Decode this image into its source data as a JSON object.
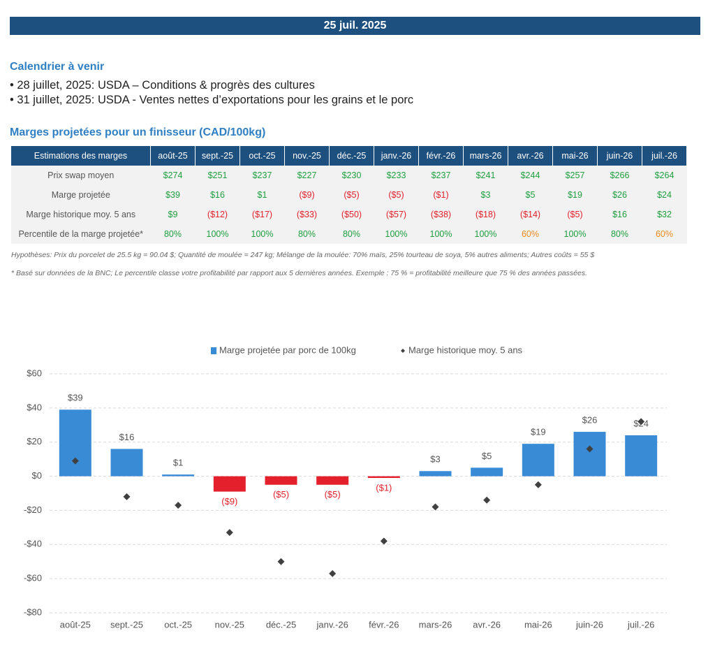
{
  "header": {
    "date": "25 juil. 2025"
  },
  "calendar": {
    "title": "Calendrier à venir",
    "items": [
      "28 juillet, 2025: USDA – Conditions & progrès des cultures",
      "31 juillet, 2025: USDA - Ventes nettes d’exportations pour les grains et le porc"
    ]
  },
  "table": {
    "title": "Marges projetées pour un finisseur (CAD/100kg)",
    "header": [
      "Estimations des marges",
      "août-25",
      "sept.-25",
      "oct.-25",
      "nov.-25",
      "déc.-25",
      "janv.-26",
      "févr.-26",
      "mars-26",
      "avr.-26",
      "mai-26",
      "juin-26",
      "juil.-26"
    ],
    "rows": [
      [
        "Prix swap moyen",
        "$274",
        "$251",
        "$237",
        "$227",
        "$230",
        "$233",
        "$237",
        "$241",
        "$244",
        "$257",
        "$266",
        "$264"
      ],
      [
        "Marge projetée",
        "$39",
        "$16",
        "$1",
        "($9)",
        "($5)",
        "($5)",
        "($1)",
        "$3",
        "$5",
        "$19",
        "$26",
        "$24"
      ],
      [
        "Marge historique moy. 5 ans",
        "$9",
        "($12)",
        "($17)",
        "($33)",
        "($50)",
        "($57)",
        "($38)",
        "($18)",
        "($14)",
        "($5)",
        "$16",
        "$32"
      ],
      [
        "Percentile de la marge projetée*",
        "80%",
        "100%",
        "100%",
        "80%",
        "80%",
        "100%",
        "100%",
        "100%",
        "60%",
        "100%",
        "80%",
        "60%"
      ]
    ],
    "cell_colors": [
      [
        "#1e9e3e",
        "#1e9e3e",
        "#1e9e3e",
        "#1e9e3e",
        "#1e9e3e",
        "#1e9e3e",
        "#1e9e3e",
        "#1e9e3e",
        "#1e9e3e",
        "#1e9e3e",
        "#1e9e3e",
        "#1e9e3e"
      ],
      [
        "#1e9e3e",
        "#1e9e3e",
        "#1e9e3e",
        "#e3202b",
        "#e3202b",
        "#e3202b",
        "#e3202b",
        "#1e9e3e",
        "#1e9e3e",
        "#1e9e3e",
        "#1e9e3e",
        "#1e9e3e"
      ],
      [
        "#1e9e3e",
        "#e3202b",
        "#e3202b",
        "#e3202b",
        "#e3202b",
        "#e3202b",
        "#e3202b",
        "#e3202b",
        "#e3202b",
        "#e3202b",
        "#1e9e3e",
        "#1e9e3e"
      ],
      [
        "#1e9e3e",
        "#1e9e3e",
        "#1e9e3e",
        "#1e9e3e",
        "#1e9e3e",
        "#1e9e3e",
        "#1e9e3e",
        "#1e9e3e",
        "#f08a1c",
        "#1e9e3e",
        "#1e9e3e",
        "#f08a1c"
      ]
    ]
  },
  "notes": [
    "Hypothèses: Prix du porcelet de 25.5 kg = 90.04 $; Quantité de moulée = 247 kg; Mélange de la moulée: 70% maïs, 25% tourteau de soya, 5% autres aliments; Autres coûts = 55 $",
    "* Basé sur données de la BNC; Le percentile classe votre profitabilité par rapport aux 5 dernières années. Exemple : 75 % = profitabilité meilleure que 75 % des années passées."
  ],
  "chart_data": {
    "type": "bar",
    "categories": [
      "août-25",
      "sept.-25",
      "oct.-25",
      "nov.-25",
      "déc.-25",
      "janv.-26",
      "févr.-26",
      "mars-26",
      "avr.-26",
      "mai-26",
      "juin-26",
      "juil.-26"
    ],
    "series": [
      {
        "name": "Marge projetée par porc de 100kg",
        "type": "bar",
        "color": "#3a8bd6",
        "negative_color": "#e3202b",
        "values": [
          39,
          16,
          1,
          -9,
          -5,
          -5,
          -1,
          3,
          5,
          19,
          26,
          24
        ],
        "value_labels": [
          "$39",
          "$16",
          "$1",
          "($9)",
          "($5)",
          "($5)",
          "($1)",
          "$3",
          "$5",
          "$19",
          "$26",
          "$24"
        ]
      },
      {
        "name": "Marge historique moy. 5 ans",
        "type": "scatter",
        "color": "#404040",
        "values": [
          9,
          -12,
          -17,
          -33,
          -50,
          -57,
          -38,
          -18,
          -14,
          -5,
          16,
          32
        ]
      }
    ],
    "ylim": [
      -80,
      60
    ],
    "yticks": [
      {
        "value": -80,
        "label": "-$80"
      },
      {
        "value": -60,
        "label": "-$60"
      },
      {
        "value": -40,
        "label": "-$40"
      },
      {
        "value": -20,
        "label": "-$20"
      },
      {
        "value": 0,
        "label": "$0"
      },
      {
        "value": 20,
        "label": "$20"
      },
      {
        "value": 40,
        "label": "$40"
      },
      {
        "value": 60,
        "label": "$60"
      }
    ],
    "grid": true,
    "legend": "top"
  }
}
